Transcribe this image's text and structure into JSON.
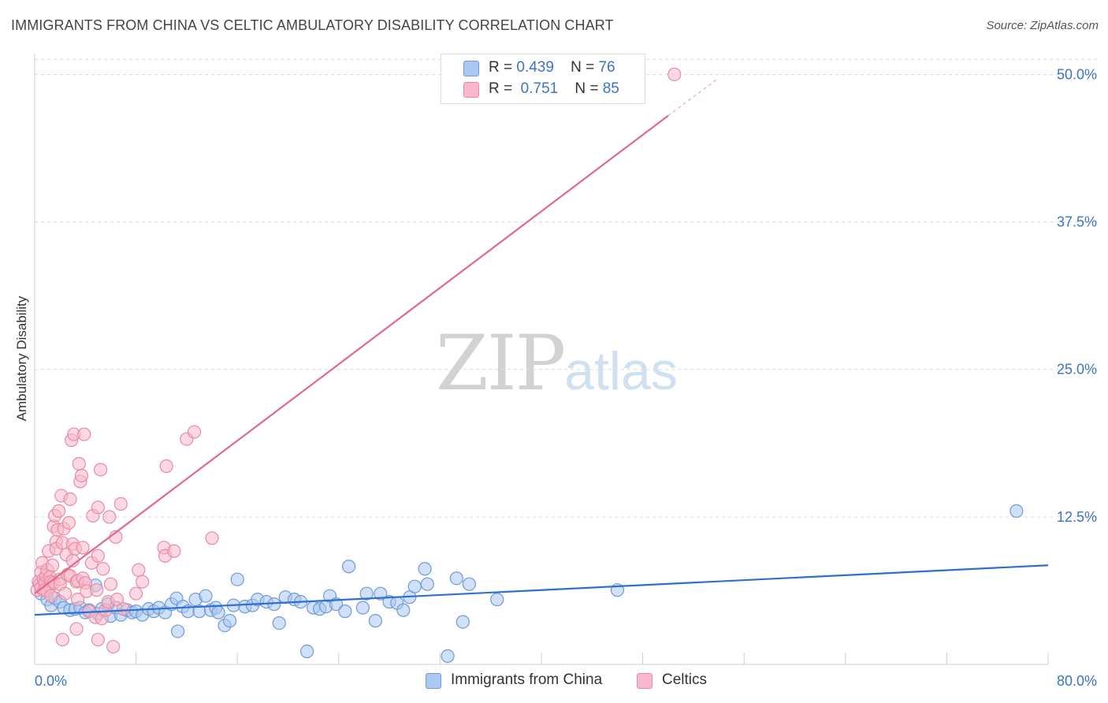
{
  "header": {
    "title": "IMMIGRANTS FROM CHINA VS CELTIC AMBULATORY DISABILITY CORRELATION CHART",
    "source": "Source: ZipAtlas.com"
  },
  "watermark": {
    "zip": "ZIP",
    "atlas": "atlas"
  },
  "legend": {
    "r_label": "R =",
    "n_label": "N =",
    "entries": [
      {
        "r": "0.439",
        "n": "76",
        "color": "#aac8f0"
      },
      {
        "r": "0.751",
        "n": "85",
        "color": "#f7b8cb"
      }
    ]
  },
  "colors": {
    "china_fill": "#aac8f0",
    "china_stroke": "#6f9ad8",
    "china_line": "#2f6fcf",
    "celtic_fill": "#f7b8cb",
    "celtic_stroke": "#e88aa6",
    "celtic_line": "#e06890",
    "axis_text": "#3b73c7",
    "grid": "#dddddd"
  },
  "chart_data": {
    "type": "scatter",
    "title": "IMMIGRANTS FROM CHINA VS CELTIC AMBULATORY DISABILITY CORRELATION CHART",
    "xlabel": "",
    "ylabel": "Ambulatory Disability",
    "xlim": [
      0,
      80
    ],
    "ylim": [
      0,
      51.5
    ],
    "x_tick_labels": [
      "0.0%",
      "80.0%"
    ],
    "y_ticks": [
      12.5,
      25.0,
      37.5,
      50.0
    ],
    "y_tick_labels": [
      "12.5%",
      "25.0%",
      "37.5%",
      "50.0%"
    ],
    "grid": true,
    "legend_position": "top-center",
    "series": [
      {
        "name": "Immigrants from China",
        "r": 0.439,
        "n": 76,
        "trend": {
          "x": [
            0,
            80
          ],
          "y": [
            4.2,
            8.4
          ]
        },
        "points": [
          [
            0.5,
            6.0
          ],
          [
            1.0,
            5.5
          ],
          [
            1.3,
            5.0
          ],
          [
            1.6,
            5.6
          ],
          [
            2.0,
            5.3
          ],
          [
            2.3,
            4.8
          ],
          [
            2.8,
            4.6
          ],
          [
            3.2,
            4.7
          ],
          [
            3.6,
            4.8
          ],
          [
            4.0,
            4.4
          ],
          [
            4.3,
            4.6
          ],
          [
            4.8,
            6.7
          ],
          [
            5.0,
            4.3
          ],
          [
            5.3,
            4.7
          ],
          [
            5.8,
            5.1
          ],
          [
            6.0,
            4.1
          ],
          [
            6.4,
            4.8
          ],
          [
            6.8,
            4.2
          ],
          [
            7.3,
            4.6
          ],
          [
            7.7,
            4.4
          ],
          [
            8.0,
            4.5
          ],
          [
            8.5,
            4.2
          ],
          [
            9.0,
            4.7
          ],
          [
            9.4,
            4.5
          ],
          [
            9.8,
            4.8
          ],
          [
            10.3,
            4.4
          ],
          [
            10.8,
            5.1
          ],
          [
            11.2,
            5.6
          ],
          [
            11.3,
            2.8
          ],
          [
            11.7,
            4.9
          ],
          [
            12.1,
            4.5
          ],
          [
            12.7,
            5.5
          ],
          [
            13.0,
            4.5
          ],
          [
            13.5,
            5.8
          ],
          [
            13.9,
            4.6
          ],
          [
            14.3,
            4.8
          ],
          [
            14.5,
            4.4
          ],
          [
            15.0,
            3.3
          ],
          [
            15.4,
            3.7
          ],
          [
            15.7,
            5.0
          ],
          [
            16.0,
            7.2
          ],
          [
            16.6,
            4.9
          ],
          [
            17.2,
            5.0
          ],
          [
            17.6,
            5.5
          ],
          [
            18.3,
            5.3
          ],
          [
            18.9,
            5.1
          ],
          [
            19.3,
            3.5
          ],
          [
            19.8,
            5.7
          ],
          [
            20.5,
            5.5
          ],
          [
            21.0,
            5.3
          ],
          [
            21.5,
            1.1
          ],
          [
            22.0,
            4.8
          ],
          [
            22.5,
            4.7
          ],
          [
            23.0,
            4.9
          ],
          [
            23.3,
            5.8
          ],
          [
            23.8,
            5.1
          ],
          [
            24.5,
            4.5
          ],
          [
            24.8,
            8.3
          ],
          [
            25.9,
            4.8
          ],
          [
            26.2,
            6.0
          ],
          [
            26.9,
            3.7
          ],
          [
            27.3,
            6.0
          ],
          [
            28.0,
            5.3
          ],
          [
            28.6,
            5.2
          ],
          [
            29.1,
            4.6
          ],
          [
            29.6,
            5.7
          ],
          [
            30.0,
            6.6
          ],
          [
            30.8,
            8.1
          ],
          [
            31.0,
            6.8
          ],
          [
            32.6,
            0.7
          ],
          [
            33.3,
            7.3
          ],
          [
            33.8,
            3.6
          ],
          [
            34.3,
            6.8
          ],
          [
            36.5,
            5.5
          ],
          [
            46.0,
            6.3
          ],
          [
            77.5,
            13.0
          ]
        ]
      },
      {
        "name": "Celtics",
        "r": 0.751,
        "n": 85,
        "trend": {
          "x": [
            0,
            50
          ],
          "y": [
            6.0,
            46.5
          ]
        },
        "trend_dashed": {
          "x": [
            50,
            54
          ],
          "y": [
            46.5,
            49.7
          ]
        },
        "points": [
          [
            0.2,
            6.3
          ],
          [
            0.3,
            7.0
          ],
          [
            0.4,
            6.8
          ],
          [
            0.5,
            7.8
          ],
          [
            0.5,
            6.5
          ],
          [
            0.6,
            8.6
          ],
          [
            0.7,
            7.2
          ],
          [
            0.8,
            6.9
          ],
          [
            0.9,
            7.5
          ],
          [
            1.0,
            6.2
          ],
          [
            1.0,
            8.0
          ],
          [
            1.1,
            9.6
          ],
          [
            1.2,
            6.6
          ],
          [
            1.2,
            7.4
          ],
          [
            1.3,
            7.0
          ],
          [
            1.4,
            8.4
          ],
          [
            1.5,
            11.7
          ],
          [
            1.5,
            6.9
          ],
          [
            1.6,
            12.6
          ],
          [
            1.7,
            10.4
          ],
          [
            1.7,
            9.8
          ],
          [
            1.8,
            11.4
          ],
          [
            1.9,
            13.0
          ],
          [
            2.0,
            7.2
          ],
          [
            2.0,
            6.8
          ],
          [
            2.1,
            14.3
          ],
          [
            2.2,
            10.3
          ],
          [
            2.3,
            11.5
          ],
          [
            2.4,
            6.0
          ],
          [
            2.5,
            9.3
          ],
          [
            2.6,
            7.6
          ],
          [
            2.7,
            12.0
          ],
          [
            2.8,
            7.5
          ],
          [
            2.8,
            14.0
          ],
          [
            2.9,
            19.0
          ],
          [
            3.0,
            8.8
          ],
          [
            3.0,
            10.2
          ],
          [
            3.1,
            19.5
          ],
          [
            3.2,
            9.8
          ],
          [
            3.3,
            7.0
          ],
          [
            3.3,
            3.0
          ],
          [
            3.4,
            5.5
          ],
          [
            3.4,
            7.1
          ],
          [
            3.5,
            17.0
          ],
          [
            3.6,
            15.5
          ],
          [
            3.7,
            16.0
          ],
          [
            3.8,
            9.9
          ],
          [
            3.8,
            7.3
          ],
          [
            3.9,
            19.5
          ],
          [
            4.0,
            6.9
          ],
          [
            4.1,
            6.2
          ],
          [
            4.3,
            4.5
          ],
          [
            4.5,
            8.6
          ],
          [
            4.6,
            12.6
          ],
          [
            4.8,
            4.0
          ],
          [
            4.9,
            6.3
          ],
          [
            5.0,
            9.2
          ],
          [
            5.0,
            13.3
          ],
          [
            5.2,
            16.5
          ],
          [
            5.3,
            3.9
          ],
          [
            5.4,
            8.1
          ],
          [
            5.6,
            4.6
          ],
          [
            5.8,
            5.3
          ],
          [
            5.9,
            12.5
          ],
          [
            5.0,
            2.1
          ],
          [
            6.0,
            6.8
          ],
          [
            6.2,
            1.5
          ],
          [
            6.4,
            10.8
          ],
          [
            6.5,
            5.5
          ],
          [
            6.8,
            13.6
          ],
          [
            7.0,
            4.7
          ],
          [
            8.2,
            8.0
          ],
          [
            8.5,
            7.0
          ],
          [
            8.0,
            6.0
          ],
          [
            10.2,
            9.9
          ],
          [
            10.3,
            9.2
          ],
          [
            10.4,
            16.8
          ],
          [
            11.0,
            9.6
          ],
          [
            12.0,
            19.1
          ],
          [
            12.6,
            19.7
          ],
          [
            14.0,
            10.7
          ],
          [
            2.2,
            2.1
          ],
          [
            0.8,
            6.3
          ],
          [
            1.3,
            5.8
          ],
          [
            50.5,
            50.0
          ]
        ]
      }
    ]
  },
  "bottom_legend": [
    {
      "label": "Immigrants from China"
    },
    {
      "label": "Celtics"
    }
  ]
}
